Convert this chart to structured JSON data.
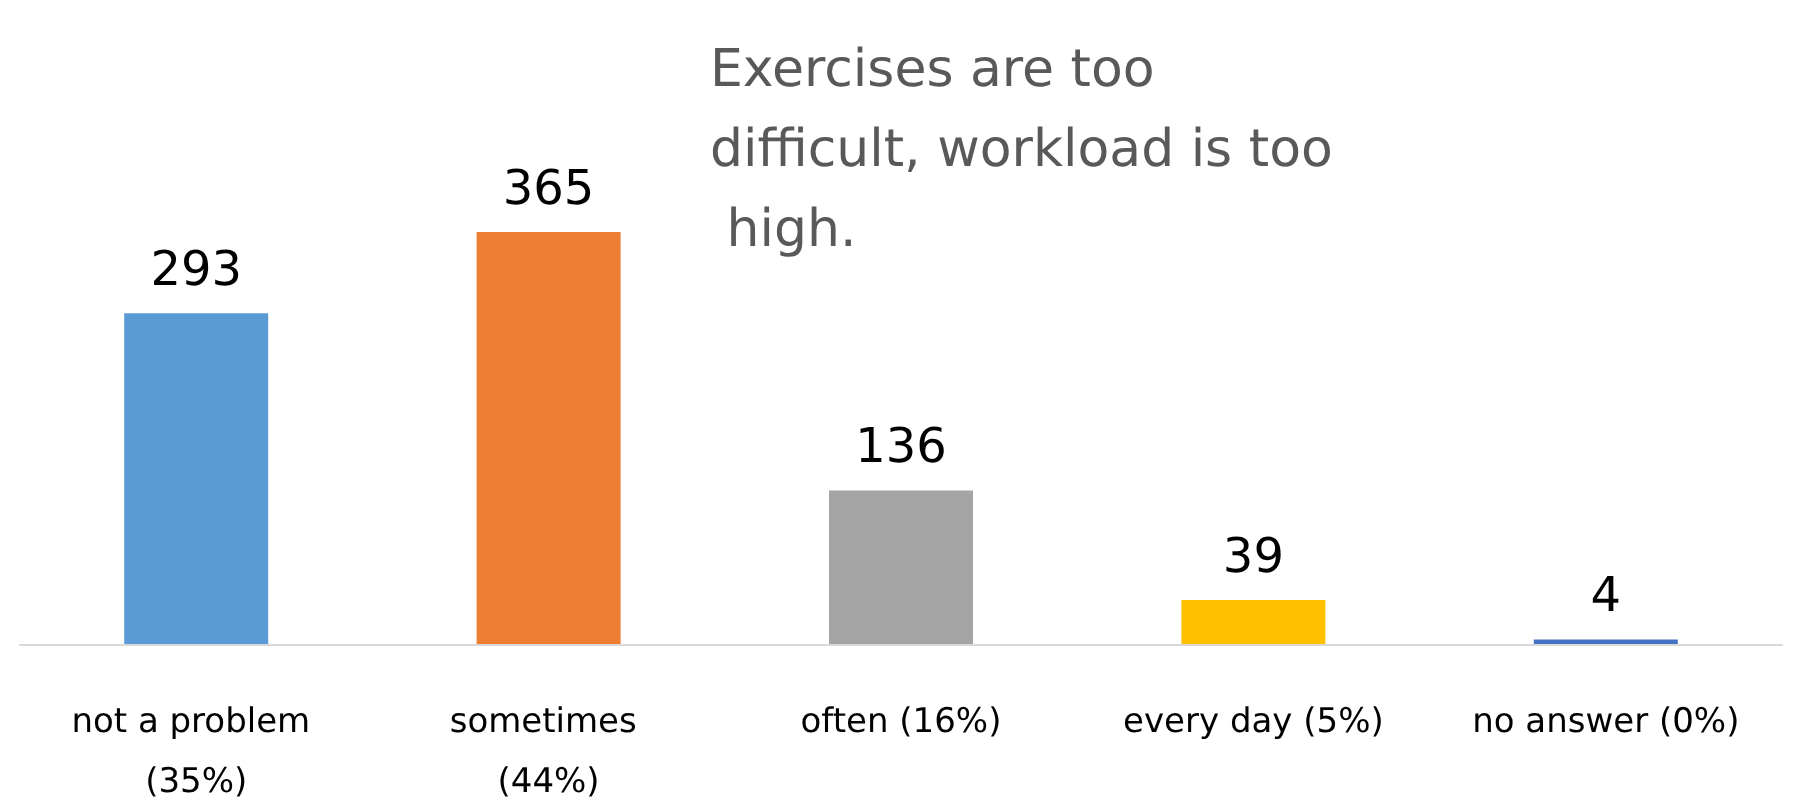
{
  "chart_data": {
    "type": "bar",
    "title": "Exercises are too difficult, workload is too high.",
    "categories": [
      "not a problem (35%)",
      "sometimes (44%)",
      "often (16%)",
      "every day (5%)",
      "no answer (0%)"
    ],
    "values": [
      293,
      365,
      136,
      39,
      4
    ],
    "colors": [
      "#5b9bd5",
      "#ed7d31",
      "#a5a5a5",
      "#ffc000",
      "#4472c4"
    ],
    "data_labels": true,
    "grid": false,
    "legend": false
  }
}
